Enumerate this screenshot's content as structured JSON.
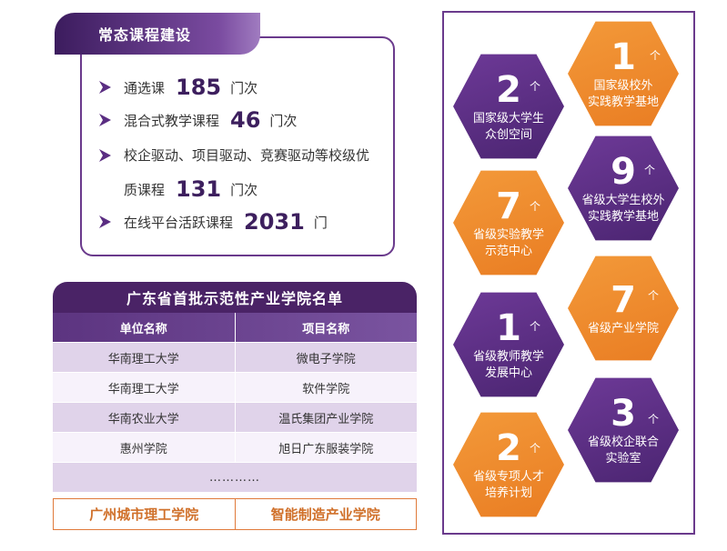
{
  "course": {
    "title": "常态课程建设",
    "items": [
      {
        "label": "通选课",
        "value": "185",
        "unit": "门次"
      },
      {
        "label": "混合式教学课程",
        "value": "46",
        "unit": "门次"
      },
      {
        "label": "校企驱动、项目驱动、竞赛驱动等校级优",
        "value": "",
        "unit": ""
      },
      {
        "label": "质课程",
        "value": "131",
        "unit": "门次"
      },
      {
        "label": "在线平台活跃课程",
        "value": "2031",
        "unit": "门"
      }
    ]
  },
  "table": {
    "title": "广东省首批示范性产业学院名单",
    "headers": [
      "单位名称",
      "项目名称"
    ],
    "rows": [
      [
        "华南理工大学",
        "微电子学院"
      ],
      [
        "华南理工大学",
        "软件学院"
      ],
      [
        "华南农业大学",
        "温氏集团产业学院"
      ],
      [
        "惠州学院",
        "旭日广东服装学院"
      ]
    ],
    "ellipsis": "…………",
    "highlight": [
      "广州城市理工学院",
      "智能制造产业学院"
    ]
  },
  "stats": {
    "unit": "个",
    "items": [
      {
        "value": "2",
        "label1": "国家级大学生",
        "label2": "众创空间",
        "color": "purple"
      },
      {
        "value": "1",
        "label1": "国家级校外",
        "label2": "实践教学基地",
        "color": "orange"
      },
      {
        "value": "9",
        "label1": "省级大学生校外",
        "label2": "实践教学基地",
        "color": "purple"
      },
      {
        "value": "7",
        "label1": "省级实验教学",
        "label2": "示范中心",
        "color": "orange"
      },
      {
        "value": "7",
        "label1": "省级产业学院",
        "label2": "",
        "color": "orange"
      },
      {
        "value": "1",
        "label1": "省级教师教学",
        "label2": "发展中心",
        "color": "purple"
      },
      {
        "value": "3",
        "label1": "省级校企联合",
        "label2": "实验室",
        "color": "purple"
      },
      {
        "value": "2",
        "label1": "省级专项人才",
        "label2": "培养计划",
        "color": "orange"
      }
    ]
  },
  "colors": {
    "purple": "#4a2470",
    "orange": "#e97c22",
    "highlight": "#d0702a"
  }
}
